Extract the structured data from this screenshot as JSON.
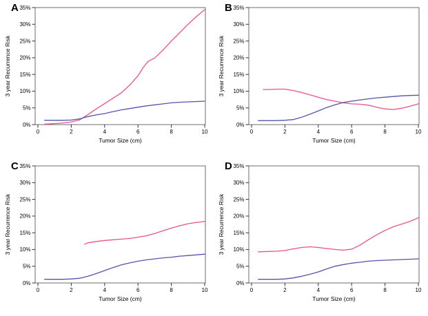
{
  "colors": {
    "pink": "#ed4f8b",
    "blue": "#5253ad",
    "frame": "#6b6b6b",
    "tick": "#333333",
    "text": "#000000",
    "background": "#ffffff"
  },
  "axes": {
    "x_label": "Tumor Size (cm)",
    "y_label": "3 year Recurrence Risk",
    "xlim": [
      0,
      10
    ],
    "ylim": [
      0,
      35
    ],
    "x_tick_values": [
      0,
      2,
      4,
      6,
      8,
      10
    ],
    "x_tick_labels": [
      "0",
      "2",
      "4",
      "6",
      "8",
      "10"
    ],
    "y_tick_values": [
      0,
      5,
      10,
      15,
      20,
      25,
      30,
      35
    ],
    "y_tick_labels": [
      "0%",
      "5%",
      "10%",
      "15%",
      "20%",
      "25%",
      "30%",
      "35%"
    ],
    "grid": false,
    "legend": "none"
  },
  "chart_data": [
    {
      "panel_label": "A",
      "type": "line",
      "xlabel": "Tumor Size (cm)",
      "ylabel": "3 year Recurrence Risk",
      "xlim": [
        0,
        10
      ],
      "ylim": [
        0,
        35
      ],
      "series": [
        {
          "name": "pink-line",
          "color_key": "pink",
          "points": [
            [
              0.4,
              0.15
            ],
            [
              1,
              0.3
            ],
            [
              1.5,
              0.5
            ],
            [
              2,
              0.8
            ],
            [
              2.5,
              1.4
            ],
            [
              3,
              3.0
            ],
            [
              3.5,
              4.7
            ],
            [
              4,
              6.3
            ],
            [
              4.5,
              7.9
            ],
            [
              5,
              9.5
            ],
            [
              5.5,
              11.8
            ],
            [
              6,
              14.6
            ],
            [
              6.3,
              17.0
            ],
            [
              6.6,
              18.9
            ],
            [
              7,
              19.9
            ],
            [
              7.5,
              22.3
            ],
            [
              8,
              25.0
            ],
            [
              8.5,
              27.5
            ],
            [
              9,
              30.0
            ],
            [
              9.5,
              32.3
            ],
            [
              10,
              34.4
            ]
          ]
        },
        {
          "name": "blue-line",
          "color_key": "blue",
          "points": [
            [
              0.4,
              1.3
            ],
            [
              1,
              1.3
            ],
            [
              1.5,
              1.3
            ],
            [
              2,
              1.35
            ],
            [
              2.5,
              1.7
            ],
            [
              3,
              2.4
            ],
            [
              3.5,
              2.9
            ],
            [
              4,
              3.3
            ],
            [
              4.5,
              3.9
            ],
            [
              5,
              4.4
            ],
            [
              5.5,
              4.8
            ],
            [
              6,
              5.2
            ],
            [
              6.5,
              5.6
            ],
            [
              7,
              5.9
            ],
            [
              7.5,
              6.2
            ],
            [
              8,
              6.5
            ],
            [
              8.5,
              6.7
            ],
            [
              9,
              6.8
            ],
            [
              9.5,
              6.9
            ],
            [
              10,
              7.0
            ]
          ]
        }
      ]
    },
    {
      "panel_label": "B",
      "type": "line",
      "xlabel": "Tumor Size (cm)",
      "ylabel": "3 year Recurrence Risk",
      "xlim": [
        0,
        10
      ],
      "ylim": [
        0,
        35
      ],
      "series": [
        {
          "name": "pink-line",
          "color_key": "pink",
          "points": [
            [
              0.7,
              10.5
            ],
            [
              1,
              10.5
            ],
            [
              1.5,
              10.6
            ],
            [
              2,
              10.6
            ],
            [
              2.5,
              10.2
            ],
            [
              3,
              9.6
            ],
            [
              3.5,
              8.9
            ],
            [
              4,
              8.2
            ],
            [
              4.5,
              7.5
            ],
            [
              5,
              7.0
            ],
            [
              5.5,
              6.5
            ],
            [
              6,
              6.2
            ],
            [
              6.5,
              6.1
            ],
            [
              7,
              5.8
            ],
            [
              7.5,
              5.2
            ],
            [
              8,
              4.7
            ],
            [
              8.5,
              4.5
            ],
            [
              9,
              4.9
            ],
            [
              9.5,
              5.5
            ],
            [
              10,
              6.2
            ]
          ]
        },
        {
          "name": "blue-line",
          "color_key": "blue",
          "points": [
            [
              0.4,
              1.2
            ],
            [
              1,
              1.2
            ],
            [
              1.5,
              1.2
            ],
            [
              2,
              1.3
            ],
            [
              2.5,
              1.5
            ],
            [
              3,
              2.2
            ],
            [
              3.5,
              3.1
            ],
            [
              4,
              4.1
            ],
            [
              4.5,
              5.1
            ],
            [
              5,
              5.9
            ],
            [
              5.5,
              6.6
            ],
            [
              6,
              7.0
            ],
            [
              6.5,
              7.4
            ],
            [
              7,
              7.7
            ],
            [
              7.5,
              8.0
            ],
            [
              8,
              8.2
            ],
            [
              8.5,
              8.4
            ],
            [
              9,
              8.6
            ],
            [
              9.5,
              8.7
            ],
            [
              10,
              8.8
            ]
          ]
        }
      ]
    },
    {
      "panel_label": "C",
      "type": "line",
      "xlabel": "Tumor Size (cm)",
      "ylabel": "3 year Recurrence Risk",
      "xlim": [
        0,
        10
      ],
      "ylim": [
        0,
        35
      ],
      "series": [
        {
          "name": "pink-line",
          "color_key": "pink",
          "points": [
            [
              2.8,
              11.6
            ],
            [
              3,
              12.0
            ],
            [
              3.5,
              12.4
            ],
            [
              4,
              12.7
            ],
            [
              4.5,
              12.9
            ],
            [
              5,
              13.1
            ],
            [
              5.5,
              13.3
            ],
            [
              6,
              13.7
            ],
            [
              6.5,
              14.1
            ],
            [
              7,
              14.8
            ],
            [
              7.5,
              15.6
            ],
            [
              8,
              16.4
            ],
            [
              8.5,
              17.1
            ],
            [
              9,
              17.7
            ],
            [
              9.5,
              18.1
            ],
            [
              10,
              18.4
            ]
          ]
        },
        {
          "name": "blue-line",
          "color_key": "blue",
          "points": [
            [
              0.4,
              1.1
            ],
            [
              1,
              1.1
            ],
            [
              1.5,
              1.1
            ],
            [
              2,
              1.2
            ],
            [
              2.5,
              1.4
            ],
            [
              3,
              2.0
            ],
            [
              3.5,
              2.8
            ],
            [
              4,
              3.7
            ],
            [
              4.5,
              4.6
            ],
            [
              5,
              5.4
            ],
            [
              5.5,
              6.0
            ],
            [
              6,
              6.5
            ],
            [
              6.5,
              6.9
            ],
            [
              7,
              7.2
            ],
            [
              7.5,
              7.5
            ],
            [
              8,
              7.7
            ],
            [
              8.5,
              8.0
            ],
            [
              9,
              8.2
            ],
            [
              9.5,
              8.4
            ],
            [
              10,
              8.6
            ]
          ]
        }
      ]
    },
    {
      "panel_label": "D",
      "type": "line",
      "xlabel": "Tumor Size (cm)",
      "ylabel": "3 year Recurrence Risk",
      "xlim": [
        0,
        10
      ],
      "ylim": [
        0,
        35
      ],
      "series": [
        {
          "name": "pink-line",
          "color_key": "pink",
          "points": [
            [
              0.4,
              9.3
            ],
            [
              1,
              9.4
            ],
            [
              1.5,
              9.5
            ],
            [
              2,
              9.7
            ],
            [
              2.5,
              10.2
            ],
            [
              3,
              10.6
            ],
            [
              3.5,
              10.8
            ],
            [
              4,
              10.6
            ],
            [
              4.5,
              10.3
            ],
            [
              5,
              10.0
            ],
            [
              5.5,
              9.8
            ],
            [
              6,
              10.1
            ],
            [
              6.5,
              11.3
            ],
            [
              7,
              12.9
            ],
            [
              7.5,
              14.4
            ],
            [
              8,
              15.7
            ],
            [
              8.5,
              16.8
            ],
            [
              9,
              17.6
            ],
            [
              9.5,
              18.4
            ],
            [
              10,
              19.5
            ]
          ]
        },
        {
          "name": "blue-line",
          "color_key": "blue",
          "points": [
            [
              0.4,
              1.1
            ],
            [
              1,
              1.1
            ],
            [
              1.5,
              1.1
            ],
            [
              2,
              1.2
            ],
            [
              2.5,
              1.5
            ],
            [
              3,
              2.0
            ],
            [
              3.5,
              2.6
            ],
            [
              4,
              3.3
            ],
            [
              4.5,
              4.2
            ],
            [
              5,
              5.0
            ],
            [
              5.5,
              5.5
            ],
            [
              6,
              5.9
            ],
            [
              6.5,
              6.2
            ],
            [
              7,
              6.5
            ],
            [
              7.5,
              6.7
            ],
            [
              8,
              6.8
            ],
            [
              8.5,
              6.9
            ],
            [
              9,
              7.0
            ],
            [
              9.5,
              7.1
            ],
            [
              10,
              7.2
            ]
          ]
        }
      ]
    }
  ]
}
